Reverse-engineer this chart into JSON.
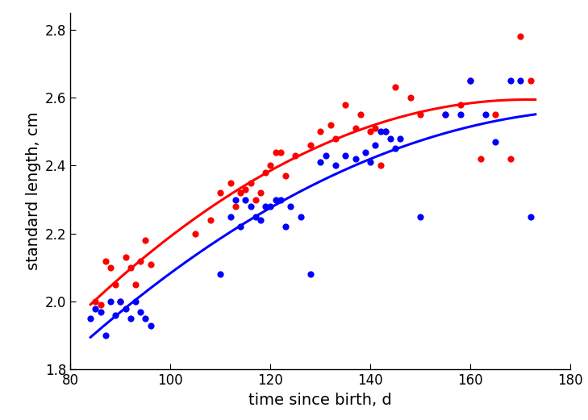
{
  "red_x": [
    85,
    86,
    87,
    88,
    89,
    90,
    91,
    92,
    93,
    94,
    95,
    96,
    105,
    108,
    110,
    112,
    113,
    114,
    115,
    116,
    117,
    118,
    119,
    120,
    121,
    122,
    123,
    125,
    128,
    130,
    132,
    133,
    135,
    137,
    138,
    140,
    141,
    142,
    143,
    145,
    148,
    150,
    155,
    158,
    160,
    162,
    165,
    168,
    170,
    172
  ],
  "red_y": [
    2.0,
    1.99,
    2.12,
    2.1,
    2.05,
    2.0,
    2.13,
    2.1,
    2.05,
    2.12,
    2.18,
    2.11,
    2.2,
    2.24,
    2.32,
    2.35,
    2.28,
    2.32,
    2.33,
    2.35,
    2.3,
    2.32,
    2.38,
    2.4,
    2.44,
    2.44,
    2.37,
    2.43,
    2.46,
    2.5,
    2.52,
    2.48,
    2.58,
    2.51,
    2.55,
    2.5,
    2.51,
    2.4,
    2.5,
    2.63,
    2.6,
    2.55,
    2.55,
    2.58,
    2.65,
    2.42,
    2.55,
    2.42,
    2.78,
    2.65
  ],
  "blue_x": [
    84,
    85,
    86,
    87,
    88,
    89,
    90,
    91,
    92,
    93,
    94,
    95,
    96,
    110,
    112,
    113,
    114,
    115,
    116,
    117,
    118,
    119,
    120,
    121,
    122,
    123,
    124,
    126,
    128,
    130,
    131,
    133,
    135,
    137,
    139,
    140,
    141,
    142,
    143,
    144,
    145,
    146,
    150,
    155,
    158,
    160,
    163,
    165,
    168,
    170,
    172
  ],
  "blue_y": [
    1.95,
    1.98,
    1.97,
    1.9,
    2.0,
    1.96,
    2.0,
    1.98,
    1.95,
    2.0,
    1.97,
    1.95,
    1.93,
    2.08,
    2.25,
    2.3,
    2.22,
    2.3,
    2.28,
    2.25,
    2.24,
    2.28,
    2.28,
    2.3,
    2.3,
    2.22,
    2.28,
    2.25,
    2.08,
    2.41,
    2.43,
    2.4,
    2.43,
    2.42,
    2.44,
    2.41,
    2.46,
    2.5,
    2.5,
    2.48,
    2.45,
    2.48,
    2.25,
    2.55,
    2.55,
    2.65,
    2.55,
    2.47,
    2.65,
    2.65,
    2.25
  ],
  "red_curve_x": [
    84,
    173
  ],
  "blue_curve_x": [
    84,
    173
  ],
  "xlabel": "time since birth, d",
  "ylabel": "standard length, cm",
  "xlim": [
    80,
    180
  ],
  "ylim": [
    1.8,
    2.85
  ],
  "xticks": [
    80,
    100,
    120,
    140,
    160,
    180
  ],
  "yticks": [
    1.8,
    2.0,
    2.2,
    2.4,
    2.6,
    2.8
  ],
  "red_color": "#FF0000",
  "blue_color": "#0000FF",
  "dot_size": 35,
  "linewidth": 2.2,
  "red_poly": [
    6e-05,
    -0.005,
    1.45
  ],
  "blue_poly": [
    9e-05,
    -0.015,
    1.52
  ]
}
